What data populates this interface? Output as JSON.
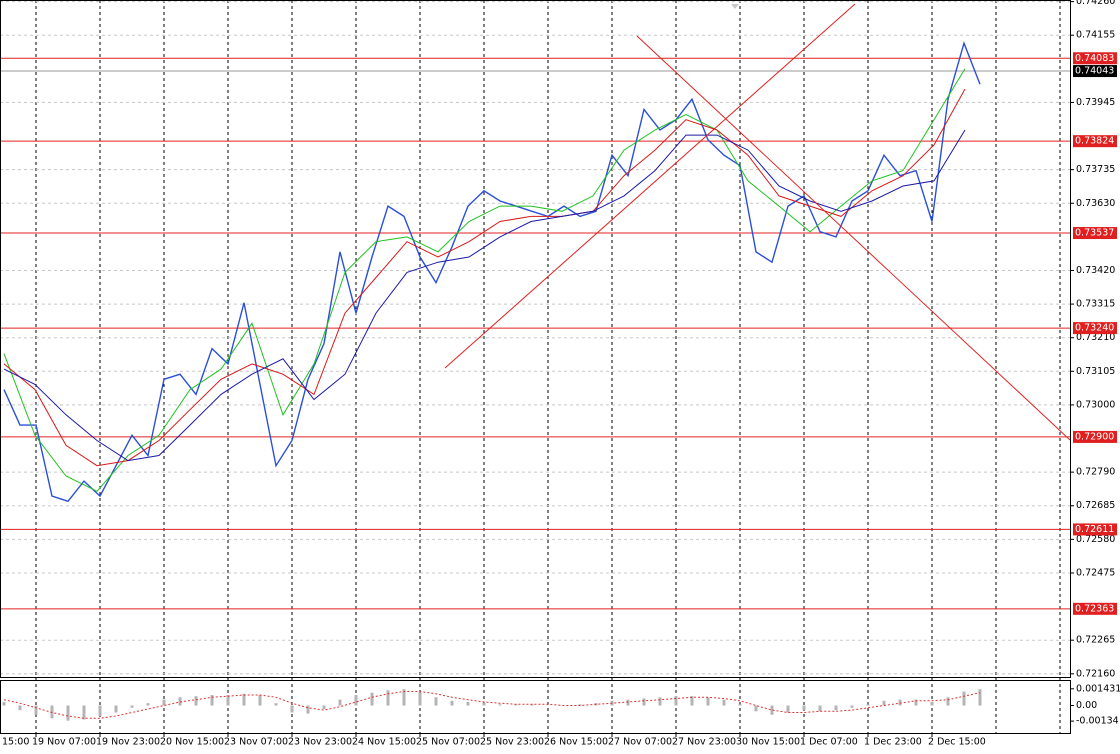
{
  "chart_data": {
    "type": "line",
    "x_labels": [
      "15:00",
      "19 Nov 07:00",
      "19 Nov 23:00",
      "20 Nov 15:00",
      "23 Nov 07:00",
      "23 Nov 23:00",
      "24 Nov 15:00",
      "25 Nov 07:00",
      "25 Nov 23:00",
      "26 Nov 15:00",
      "27 Nov 07:00",
      "27 Nov 23:00",
      "30 Nov 15:00",
      "1 Dec 07:00",
      "1 Dec 23:00",
      "2 Dec 15:00"
    ],
    "ylim": [
      0.7215,
      0.74265
    ],
    "yticks": [
      {
        "value": 0.7426,
        "label": "0.74260"
      },
      0.74155,
      0.73945,
      0.73735,
      {
        "value": 0.7363,
        "label": "0.73630"
      },
      {
        "value": 0.7342,
        "label": "0.73420"
      },
      0.73315,
      {
        "value": 0.7321,
        "label": "0.73210"
      },
      0.73105,
      {
        "value": 0.73,
        "label": "0.73000"
      },
      {
        "value": 0.7279,
        "label": "0.72790"
      },
      0.72685,
      {
        "value": 0.7258,
        "label": "0.72580"
      },
      0.72475,
      0.72265,
      {
        "value": 0.7216,
        "label": "0.72160"
      }
    ],
    "grid": true,
    "series": [
      {
        "color": "#2b4fd8",
        "values": [
          0.73048,
          0.72937,
          0.72937,
          0.72715,
          0.72699,
          0.72762,
          0.72715,
          0.7281,
          0.72905,
          0.72842,
          0.7308,
          0.73096,
          0.73033,
          0.73176,
          0.73128,
          0.73319,
          0.73064,
          0.7281,
          0.72889,
          0.7308,
          0.73192,
          0.73478,
          0.73287,
          0.73462,
          0.73621,
          0.73589,
          0.73462,
          0.73382,
          0.73494,
          0.73621,
          0.73669,
          0.73637,
          0.73621,
          0.73605,
          0.73589,
          0.73621,
          0.73589,
          0.73605,
          0.7378,
          0.73716,
          0.73923,
          0.73859,
          0.73891,
          0.73955,
          0.73828,
          0.7378,
          0.73748,
          0.73478,
          0.73446,
          0.73621,
          0.73653,
          0.73541,
          0.73525,
          0.73637,
          0.73669,
          0.7378,
          0.73716,
          0.73732,
          0.73573,
          0.73955,
          0.7413,
          0.74002
        ]
      },
      {
        "color": "#1fc21f",
        "values": [
          0.7316,
          0.72905,
          0.72778,
          0.7273,
          0.72842,
          0.72905,
          0.73048,
          0.73112,
          0.73255,
          0.72969,
          0.73128,
          0.73414,
          0.7351,
          0.73525,
          0.73478,
          0.73573,
          0.73621,
          0.73621,
          0.73605,
          0.73653,
          0.73796,
          0.73859,
          0.73907,
          0.73859,
          0.737,
          0.73621,
          0.73541,
          0.73621,
          0.737,
          0.73732,
          0.73891,
          0.7405
        ]
      },
      {
        "color": "#d81818",
        "values": [
          0.73128,
          0.73048,
          0.72874,
          0.7281,
          0.72826,
          0.72889,
          0.72985,
          0.7308,
          0.73128,
          0.73096,
          0.73033,
          0.73287,
          0.73398,
          0.7351,
          0.73462,
          0.7351,
          0.73573,
          0.73589,
          0.73589,
          0.73605,
          0.73716,
          0.73796,
          0.73891,
          0.73859,
          0.7378,
          0.73653,
          0.73621,
          0.73589,
          0.73669,
          0.73716,
          0.73812,
          0.73987
        ]
      },
      {
        "color": "#1a1aa8",
        "values": [
          0.73112,
          0.73064,
          0.72969,
          0.72889,
          0.72826,
          0.72842,
          0.72937,
          0.73033,
          0.73096,
          0.73144,
          0.73017,
          0.73096,
          0.73287,
          0.73414,
          0.73446,
          0.73462,
          0.73525,
          0.73573,
          0.73589,
          0.73605,
          0.73653,
          0.73732,
          0.73843,
          0.73843,
          0.73796,
          0.73684,
          0.73637,
          0.73605,
          0.73637,
          0.73684,
          0.737,
          0.73859
        ]
      }
    ],
    "levels": [
      0.74083,
      0.73824,
      0.73537,
      {
        "value": 0.7324,
        "label": "0.73240"
      },
      {
        "value": 0.729,
        "label": "0.72900"
      },
      0.72611,
      0.72363
    ],
    "level_color": "#e02020",
    "current_price": 0.74043,
    "oscillator": {
      "ylim": [
        -0.00236,
        0.0021
      ],
      "yticks": [
        0.001431,
        {
          "value": 0,
          "label": "0.00"
        },
        -0.00134
      ],
      "histogram_color": "#b4b4b4",
      "signal_color": "#e03030",
      "histogram": [
        0.0003,
        -0.0004,
        -0.0008,
        -0.0011,
        -0.0013,
        -0.0012,
        -0.0009,
        -0.0006,
        -0.0002,
        0.0002,
        0.0005,
        0.0007,
        0.0008,
        0.0009,
        0.0009,
        0.001,
        0.0009,
        0.0002,
        -0.0006,
        -0.0007,
        -0.0003,
        0.0005,
        0.0009,
        0.0011,
        0.0013,
        0.0014,
        0.0011,
        0.0007,
        0.0004,
        0.0003,
        0.0002,
        0.0001,
        0.0001,
        0.0001,
        0.0,
        0.0,
        0.0001,
        0.0002,
        0.0004,
        0.0005,
        0.0006,
        0.0007,
        0.0008,
        0.0008,
        0.0007,
        0.0005,
        0.0001,
        -0.0005,
        -0.0008,
        -0.0006,
        -0.0004,
        -0.0005,
        -0.0004,
        -0.0002,
        0.0001,
        0.0004,
        0.0005,
        0.0005,
        0.0003,
        0.0007,
        0.0012,
        0.0014
      ],
      "signal": [
        0.0005,
        0.0002,
        -0.0002,
        -0.0006,
        -0.0009,
        -0.0011,
        -0.0011,
        -0.0009,
        -0.0006,
        -0.0003,
        0.0,
        0.0003,
        0.0005,
        0.0007,
        0.0008,
        0.0009,
        0.0009,
        0.0007,
        0.0002,
        -0.0002,
        -0.0004,
        -0.0001,
        0.0003,
        0.0007,
        0.001,
        0.0012,
        0.0012,
        0.001,
        0.0007,
        0.0005,
        0.0003,
        0.0002,
        0.0001,
        0.0001,
        0.0001,
        0.0,
        0.0,
        0.0001,
        0.0002,
        0.0003,
        0.0004,
        0.0005,
        0.0006,
        0.0007,
        0.0007,
        0.0006,
        0.0004,
        0.0,
        -0.0004,
        -0.0006,
        -0.0006,
        -0.0005,
        -0.0005,
        -0.0004,
        -0.0002,
        0.0,
        0.0002,
        0.0004,
        0.0004,
        0.0005,
        0.0008,
        0.0011
      ]
    }
  }
}
